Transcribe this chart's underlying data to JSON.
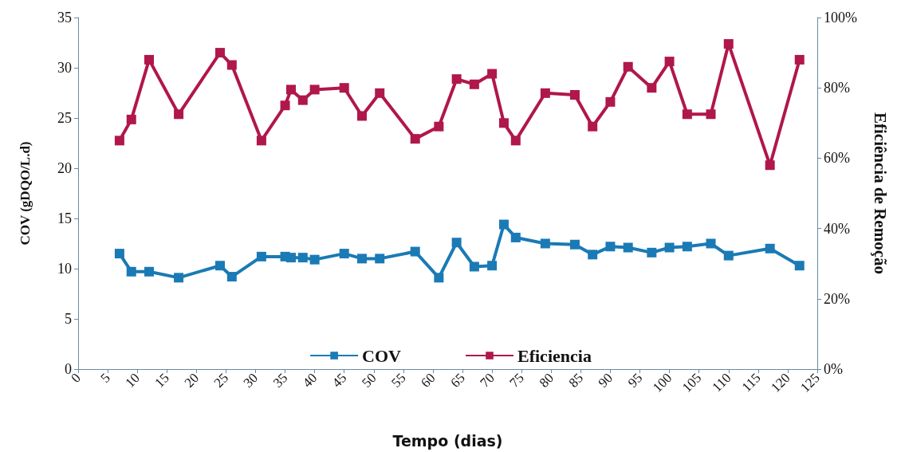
{
  "chart_data": {
    "type": "line",
    "xlabel": "Tempo (dias)",
    "ylabel": "COV (gDQO/L.d)",
    "y2label": "Eficiência de Remoção",
    "x": [
      7,
      9,
      12,
      17,
      24,
      26,
      31,
      35,
      36,
      38,
      40,
      45,
      48,
      51,
      57,
      61,
      64,
      67,
      70,
      72,
      74,
      79,
      84,
      87,
      90,
      93,
      97,
      100,
      103,
      107,
      110,
      117,
      122
    ],
    "series": [
      {
        "name": "COV",
        "color": "#1a7ab5",
        "values": [
          11.5,
          9.7,
          9.7,
          9.1,
          10.3,
          9.2,
          11.2,
          11.2,
          11.1,
          11.1,
          10.9,
          11.5,
          11.0,
          11.0,
          11.7,
          9.1,
          12.6,
          10.2,
          10.3,
          14.4,
          13.1,
          12.5,
          12.4,
          11.4,
          12.2,
          12.1,
          11.6,
          12.1,
          12.2,
          12.5,
          11.3,
          12.0,
          10.3
        ]
      },
      {
        "name": "Eficiencia",
        "color": "#b0174a",
        "axis": "y2",
        "values": [
          65,
          71,
          88,
          72.5,
          90,
          86.5,
          65,
          75,
          79.5,
          76.5,
          79.5,
          80,
          72,
          78.5,
          65.5,
          69,
          82.5,
          81,
          84,
          70,
          65,
          78.5,
          78,
          69,
          76,
          86,
          80,
          87.5,
          72.5,
          72.5,
          92.5,
          58,
          88
        ]
      }
    ],
    "xlim": [
      0,
      125
    ],
    "xticks": [
      0,
      5,
      10,
      15,
      20,
      25,
      30,
      35,
      40,
      45,
      50,
      55,
      60,
      65,
      70,
      75,
      80,
      85,
      90,
      95,
      100,
      105,
      110,
      115,
      120,
      125
    ],
    "ylim": [
      0,
      35
    ],
    "yticks": [
      0,
      5,
      10,
      15,
      20,
      25,
      30,
      35
    ],
    "y2lim": [
      0,
      100
    ],
    "y2ticks": [
      {
        "value": 0,
        "label": "0%"
      },
      {
        "value": 20,
        "label": "20%"
      },
      {
        "value": 40,
        "label": "40%"
      },
      {
        "value": 60,
        "label": "60%"
      },
      {
        "value": 80,
        "label": "80%"
      },
      {
        "value": 100,
        "label": "100%"
      }
    ],
    "grid": false,
    "legend": "bottom",
    "marker": "square",
    "line_style": "solid"
  }
}
